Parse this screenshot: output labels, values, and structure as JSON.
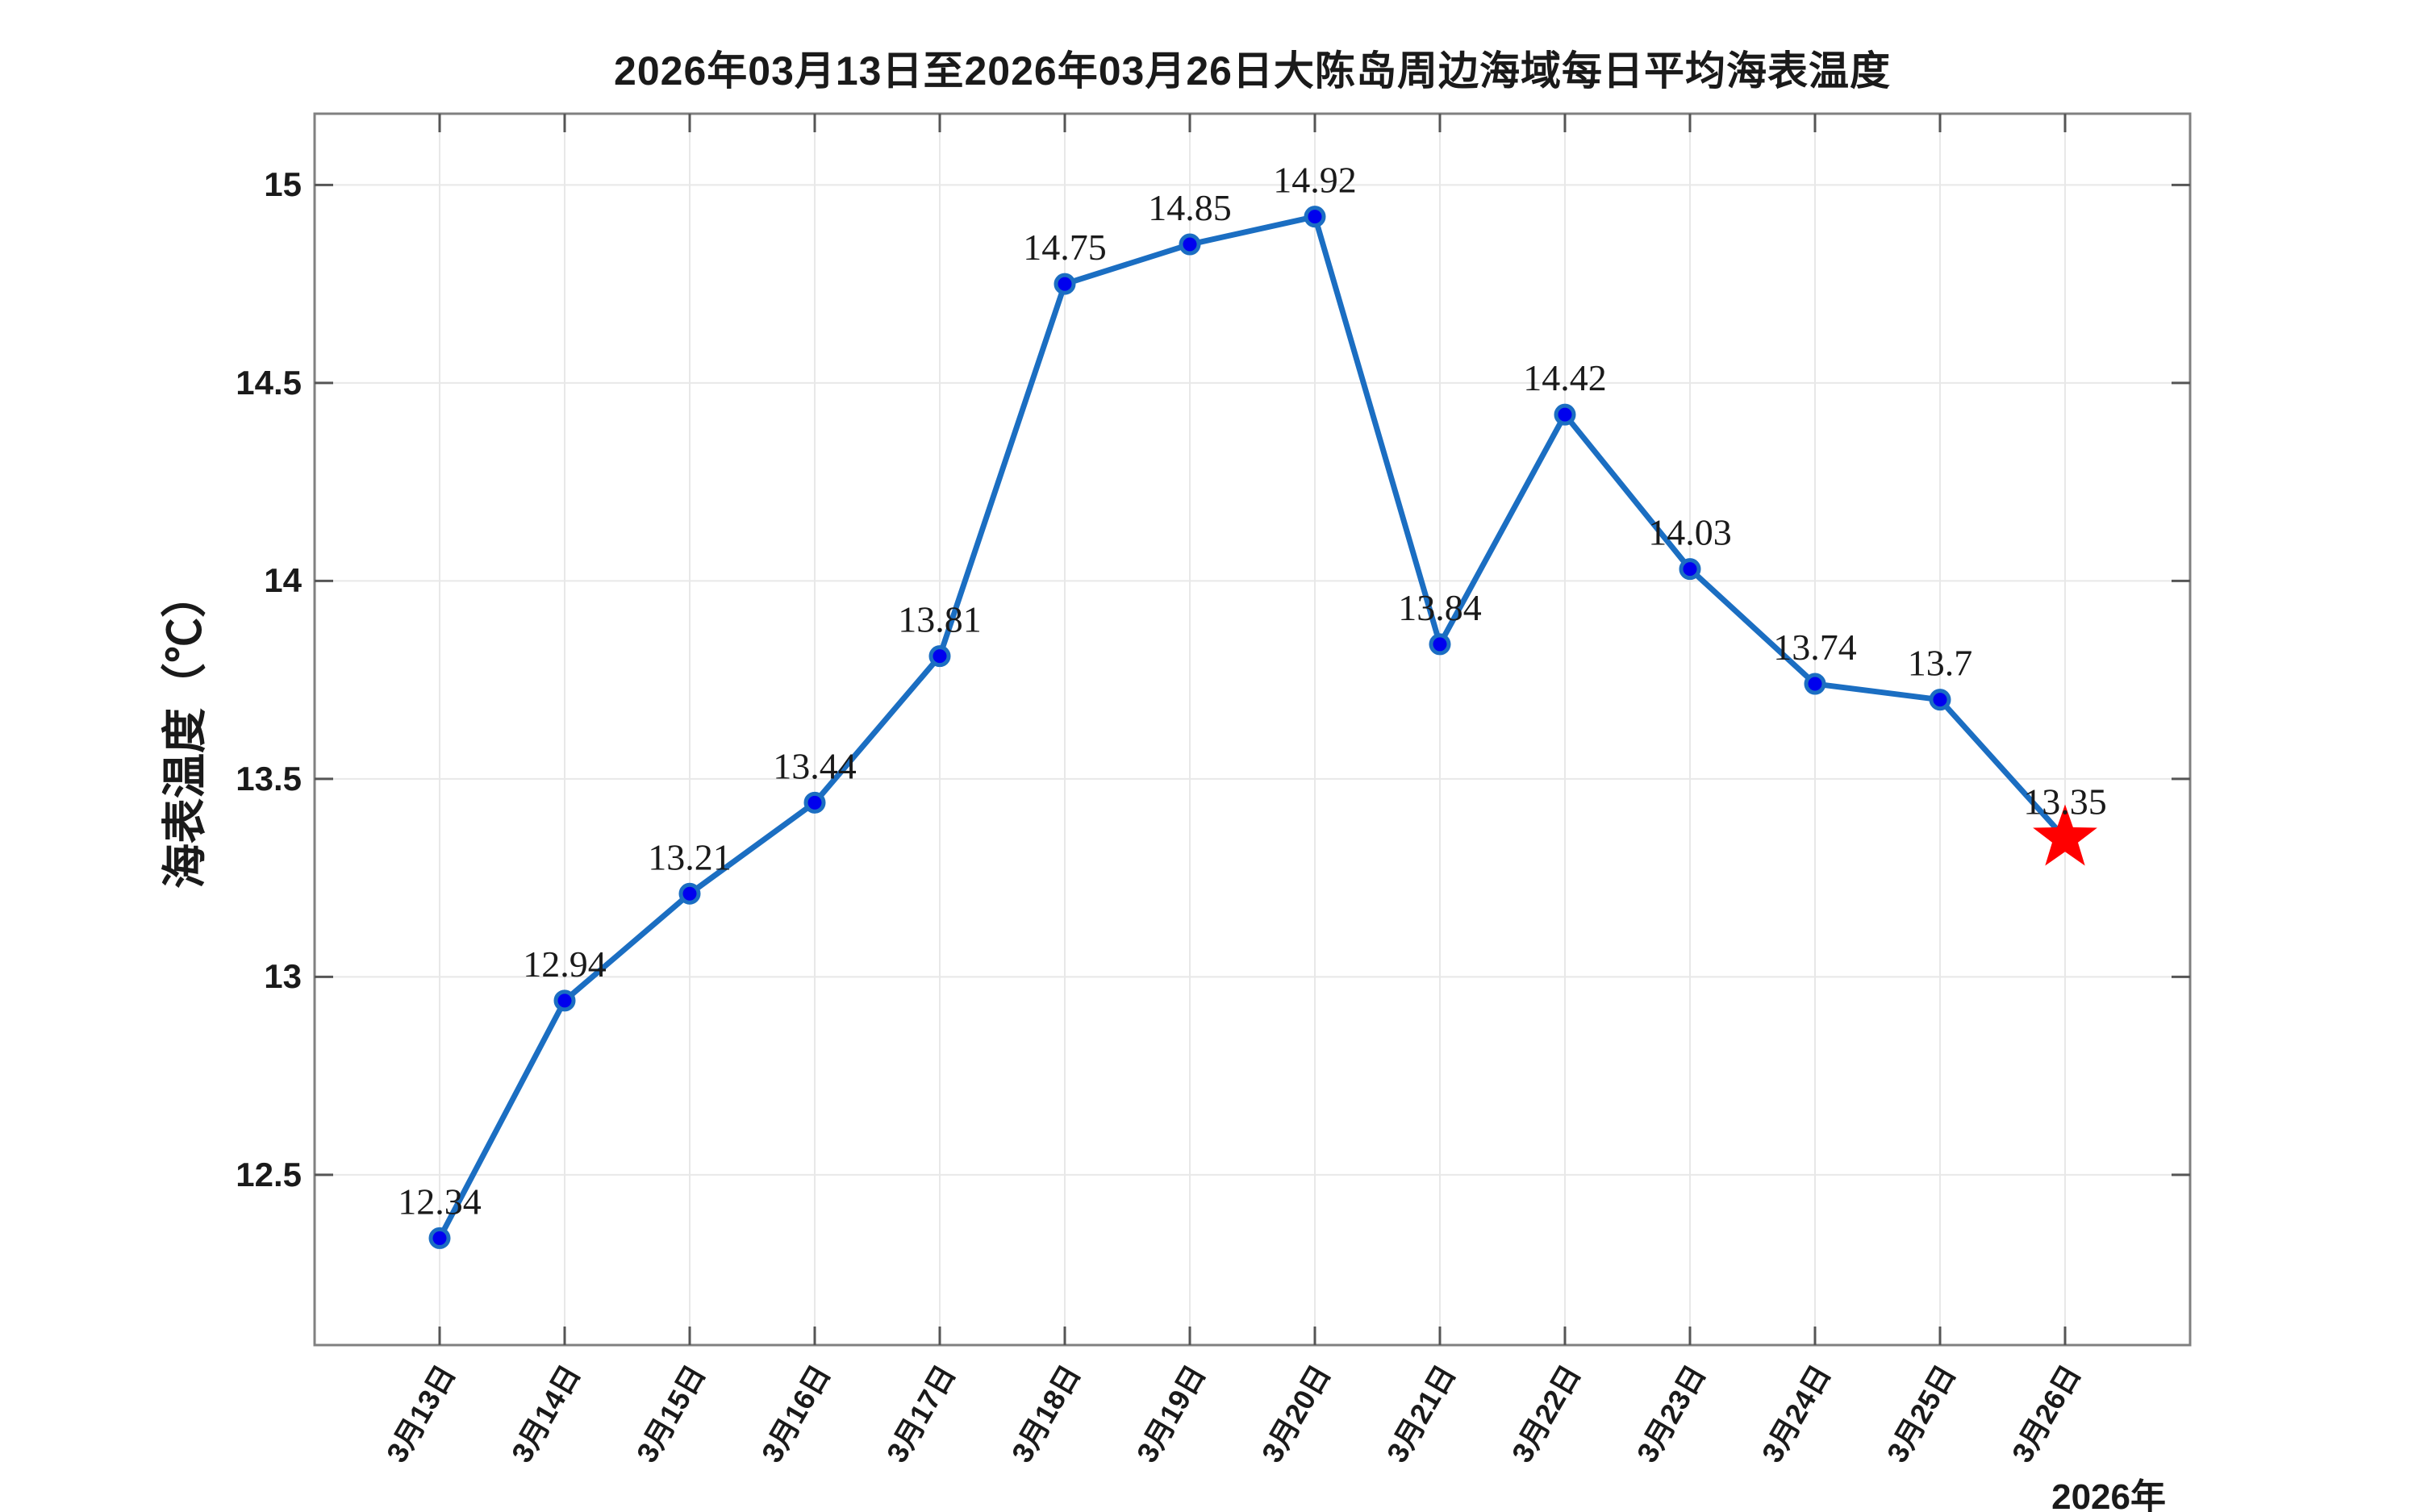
{
  "chart_data": {
    "type": "line",
    "title": "2026年03月13日至2026年03月26日大陈岛周边海域每日平均海表温度",
    "ylabel": "海表温度（℃）",
    "xlabel": "",
    "x_axis_secondary_label": "2026年",
    "categories": [
      "3月13日",
      "3月14日",
      "3月15日",
      "3月16日",
      "3月17日",
      "3月18日",
      "3月19日",
      "3月20日",
      "3月21日",
      "3月22日",
      "3月23日",
      "3月24日",
      "3月25日",
      "3月26日"
    ],
    "series": [
      {
        "name": "每日平均海表温度",
        "values": [
          12.34,
          12.94,
          13.21,
          13.44,
          13.81,
          14.75,
          14.85,
          14.92,
          13.84,
          14.42,
          14.03,
          13.74,
          13.7,
          13.35
        ]
      }
    ],
    "point_labels": [
      "12.34",
      "12.94",
      "13.21",
      "13.44",
      "13.81",
      "14.75",
      "14.85",
      "14.92",
      "13.84",
      "14.42",
      "14.03",
      "13.74",
      "13.7",
      "13.35"
    ],
    "yticks": [
      12.5,
      13,
      13.5,
      14,
      14.5,
      15
    ],
    "ytick_labels": [
      "12.5",
      "13",
      "13.5",
      "14",
      "14.5",
      "15"
    ],
    "ylim": [
      12.07,
      15.18
    ],
    "grid": true,
    "legend": "none",
    "marker": "circle",
    "last_point_marker": "red-star",
    "colors": {
      "line": "#1B6EC2",
      "marker_face": "#0000EE",
      "marker_edge": "#1B6EC2",
      "star": "#FF0000",
      "grid": "#E8E8E8",
      "axis_frame": "#808080",
      "tick": "#555555",
      "text": "#1A1A1A"
    }
  }
}
